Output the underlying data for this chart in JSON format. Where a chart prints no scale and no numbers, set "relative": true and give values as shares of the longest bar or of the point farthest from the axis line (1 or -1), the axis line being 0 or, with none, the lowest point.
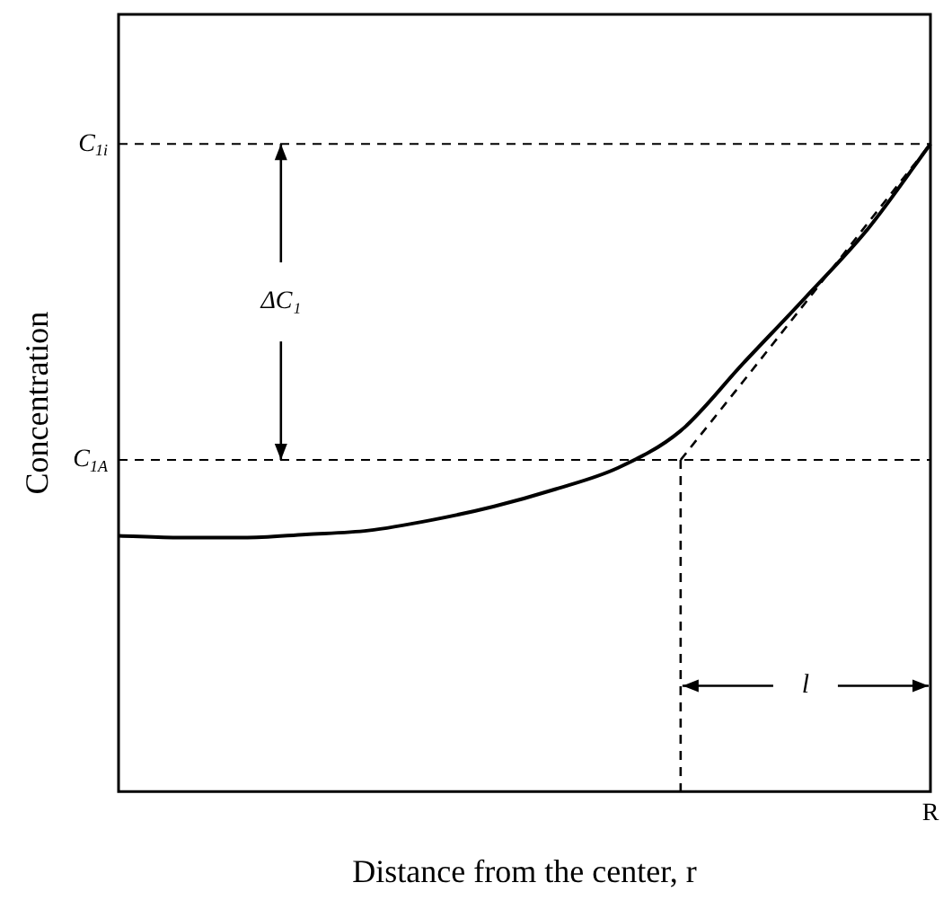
{
  "chart_data": {
    "type": "line",
    "relative": true,
    "xlabel": "Distance from the center, r",
    "ylabel": "Concentration",
    "categories": [
      null,
      null,
      null,
      null,
      null,
      null,
      null,
      null,
      null,
      null,
      null,
      null,
      null,
      null
    ],
    "series": [
      {
        "color": "#000000",
        "values": [
          0.395,
          0.392,
          0.392,
          0.397,
          0.403,
          0.419,
          0.44,
          0.467,
          0.5,
          0.557,
          0.661,
          0.763,
          0.869,
          1
        ]
      },
      {
        "color": "#000000",
        "line_style": "dashed",
        "values": [
          null,
          null,
          null,
          null,
          null,
          null,
          null,
          null,
          null,
          0.512,
          0.633,
          0.755,
          0.878,
          1
        ]
      }
    ],
    "ref_lines": [
      {
        "axis": "y",
        "value": 1,
        "label": "C$_{1i}$",
        "line_style": "dashed"
      },
      {
        "axis": "y",
        "value": 0.512,
        "label": "C$_{1A}$",
        "line_style": "dashed"
      }
    ],
    "annotations": [
      "ΔC₁",
      "l",
      "R"
    ],
    "legend": false
  }
}
